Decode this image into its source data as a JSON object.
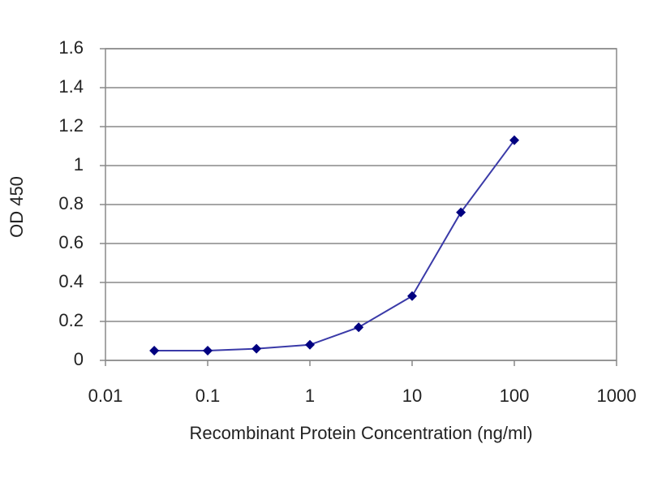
{
  "chart_data": {
    "type": "line",
    "x_label": "Recombinant Protein Concentration (ng/ml)",
    "y_label": "OD 450",
    "x": [
      0.03,
      0.1,
      0.3,
      1,
      3,
      10,
      30,
      100
    ],
    "values": [
      0.05,
      0.05,
      0.06,
      0.08,
      0.17,
      0.33,
      0.76,
      1.13
    ],
    "color": "#3a3aa8",
    "marker_color": "#000080",
    "xscale": "log",
    "xlim": [
      0.01,
      1000
    ],
    "xticks": [
      0.01,
      0.1,
      1,
      10,
      100,
      1000
    ],
    "ylim": [
      0,
      1.6
    ],
    "yticks": [
      0,
      0.2,
      0.4,
      0.6,
      0.8,
      1,
      1.2,
      1.4,
      1.6
    ],
    "grid": true
  }
}
